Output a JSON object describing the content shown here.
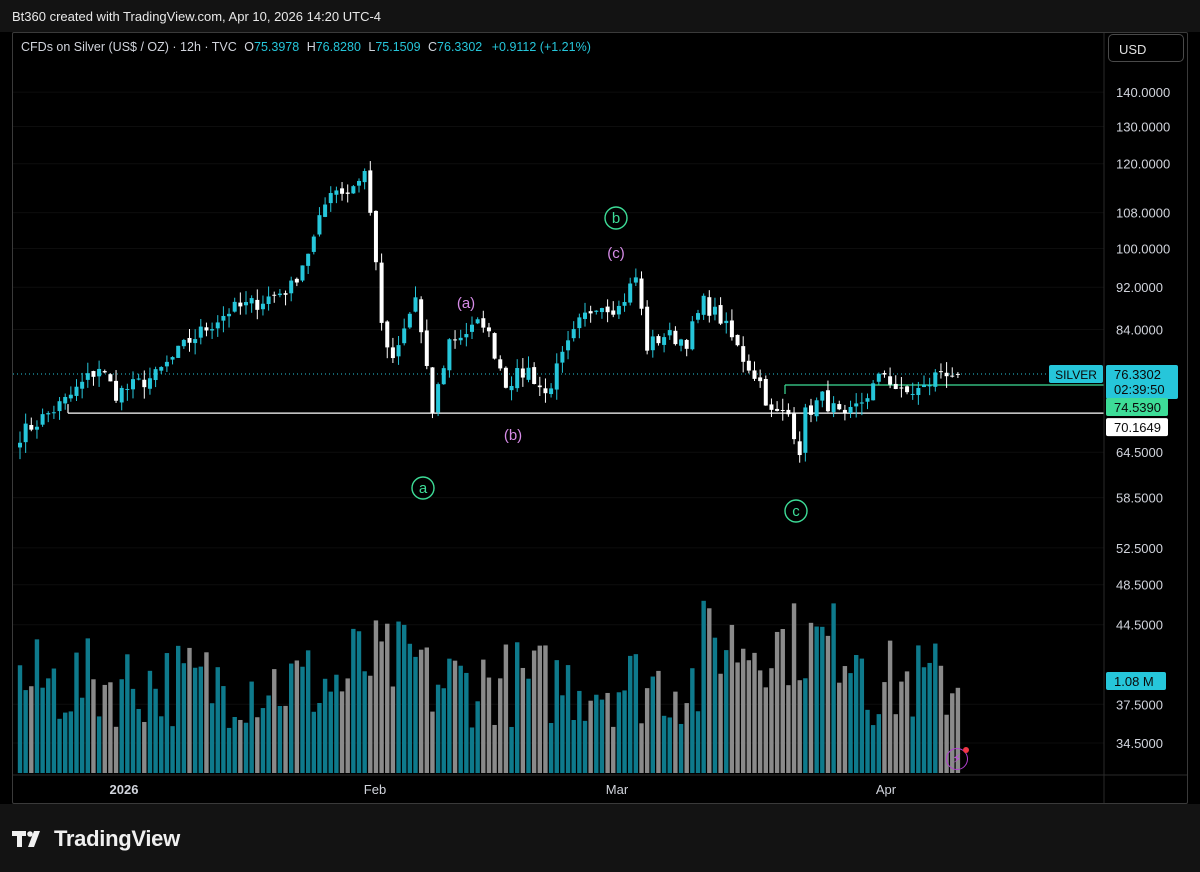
{
  "header": {
    "attribution": "Bt360 created with TradingView.com, Apr 10, 2026 14:20 UTC-4"
  },
  "legend": {
    "symbol": "CFDs on Silver (US$ / OZ) · 12h · TVC",
    "open_label": "O",
    "open": "75.3978",
    "high_label": "H",
    "high": "76.8280",
    "low_label": "L",
    "low": "75.1509",
    "close_label": "C",
    "close": "76.3302",
    "change": "+0.9112 (+1.21%)"
  },
  "currency_button": "USD",
  "brand": {
    "name": "TradingView",
    "logo_icon": "tradingview-logo-icon"
  },
  "alert_icon": "lightning-bolt-icon",
  "colors": {
    "up": "#26c6da",
    "down": "#ffffff",
    "vol_up": "#0e7a8c",
    "vol_down": "#8a8a8a",
    "accent": "#26c6da",
    "wave_green": "#3ddc97",
    "wave_purple": "#d78ce8"
  },
  "chart_data": {
    "type": "candlestick",
    "scale": "log",
    "price_axis": [
      "140.0000",
      "130.0000",
      "120.0000",
      "108.0000",
      "100.0000",
      "92.0000",
      "84.0000",
      "64.5000",
      "58.5000",
      "52.5000",
      "48.5000",
      "44.5000",
      "37.5000",
      "34.5000"
    ],
    "time_axis": [
      "2026",
      "Feb",
      "Mar",
      "Apr"
    ],
    "last_price": {
      "symbol": "SILVER",
      "price": "76.3302",
      "countdown": "02:39:50"
    },
    "levels": [
      {
        "price": "74.5390"
      },
      {
        "price": "70.1649"
      }
    ],
    "volume_label": "1.08 M",
    "wave_labels": [
      {
        "text": "a",
        "style": "circle"
      },
      {
        "text": "(a)",
        "style": "plain"
      },
      {
        "text": "(b)",
        "style": "plain"
      },
      {
        "text": "(c)",
        "style": "plain"
      },
      {
        "text": "b",
        "style": "circle"
      },
      {
        "text": "c",
        "style": "circle"
      }
    ],
    "waypoints": [
      {
        "bar": 0,
        "price": 67.0
      },
      {
        "bar": 8,
        "price": 72.0
      },
      {
        "bar": 14,
        "price": 77.5
      },
      {
        "bar": 17,
        "price": 73.2
      },
      {
        "bar": 24,
        "price": 76.0
      },
      {
        "bar": 30,
        "price": 82.0
      },
      {
        "bar": 37,
        "price": 87.5
      },
      {
        "bar": 42,
        "price": 89.0
      },
      {
        "bar": 48,
        "price": 92.0
      },
      {
        "bar": 52,
        "price": 102.0
      },
      {
        "bar": 55,
        "price": 114.0
      },
      {
        "bar": 58,
        "price": 113.0
      },
      {
        "bar": 61,
        "price": 118.0
      },
      {
        "bar": 63,
        "price": 98.0
      },
      {
        "bar": 64,
        "price": 84.0
      },
      {
        "bar": 66,
        "price": 78.0
      },
      {
        "bar": 70,
        "price": 90.0
      },
      {
        "bar": 73,
        "price": 70.5
      },
      {
        "bar": 76,
        "price": 82.0
      },
      {
        "bar": 80,
        "price": 84.0
      },
      {
        "bar": 82,
        "price": 85.5
      },
      {
        "bar": 86,
        "price": 75.0
      },
      {
        "bar": 90,
        "price": 77.0
      },
      {
        "bar": 93,
        "price": 73.0
      },
      {
        "bar": 96,
        "price": 79.0
      },
      {
        "bar": 99,
        "price": 85.0
      },
      {
        "bar": 102,
        "price": 89.0
      },
      {
        "bar": 106,
        "price": 88.0
      },
      {
        "bar": 109,
        "price": 94.0
      },
      {
        "bar": 111,
        "price": 81.0
      },
      {
        "bar": 114,
        "price": 83.0
      },
      {
        "bar": 118,
        "price": 82.0
      },
      {
        "bar": 121,
        "price": 89.0
      },
      {
        "bar": 124,
        "price": 86.0
      },
      {
        "bar": 128,
        "price": 79.0
      },
      {
        "bar": 131,
        "price": 75.0
      },
      {
        "bar": 133,
        "price": 70.0
      },
      {
        "bar": 136,
        "price": 70.0
      },
      {
        "bar": 138,
        "price": 65.0
      },
      {
        "bar": 139,
        "price": 70.0
      },
      {
        "bar": 142,
        "price": 72.5
      },
      {
        "bar": 146,
        "price": 69.0
      },
      {
        "bar": 149,
        "price": 72.0
      },
      {
        "bar": 153,
        "price": 76.5
      },
      {
        "bar": 156,
        "price": 73.0
      },
      {
        "bar": 160,
        "price": 74.0
      },
      {
        "bar": 163,
        "price": 77.0
      },
      {
        "bar": 166,
        "price": 76.3302
      }
    ]
  }
}
